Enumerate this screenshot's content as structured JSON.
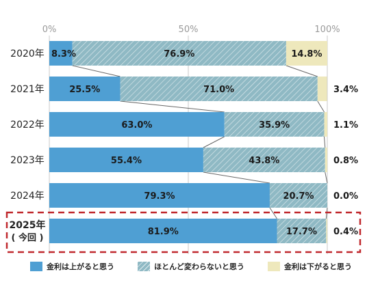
{
  "chart_data": {
    "type": "bar",
    "orientation": "horizontal",
    "stacked": true,
    "xlim": [
      0,
      100
    ],
    "x_ticks": [
      "0%",
      "50%",
      "100%"
    ],
    "categories": [
      "2020年",
      "2021年",
      "2022年",
      "2023年",
      "2024年",
      "2025年"
    ],
    "highlight_category_sublabel": "( 今回 )",
    "highlight_category_index": 5,
    "series": [
      {
        "name": "金利は上がると思う",
        "color": "#4f9fd3",
        "values": [
          8.3,
          25.5,
          63.0,
          55.4,
          79.3,
          81.9
        ],
        "labels": [
          "8.3%",
          "25.5%",
          "63.0%",
          "55.4%",
          "79.3%",
          "81.9%"
        ]
      },
      {
        "name": "ほとんど変わらないと思う",
        "color": "#8fb9c4",
        "pattern": "diagonal-hatch",
        "values": [
          76.9,
          71.0,
          35.9,
          43.8,
          20.7,
          17.7
        ],
        "labels": [
          "76.9%",
          "71.0%",
          "35.9%",
          "43.8%",
          "20.7%",
          "17.7%"
        ]
      },
      {
        "name": "金利は下がると思う",
        "color": "#eee8bc",
        "values": [
          14.8,
          3.4,
          1.1,
          0.8,
          0.0,
          0.4
        ],
        "labels": [
          "14.8%",
          "3.4%",
          "1.1%",
          "0.8%",
          "0.0%",
          "0.4%"
        ]
      }
    ],
    "grid": true,
    "legend_position": "bottom",
    "highlight_border_color": "#c0282d"
  },
  "legend": {
    "up": "金利は上がると思う",
    "same": "ほとんど変わらないと思う",
    "down": "金利は下がると思う"
  }
}
